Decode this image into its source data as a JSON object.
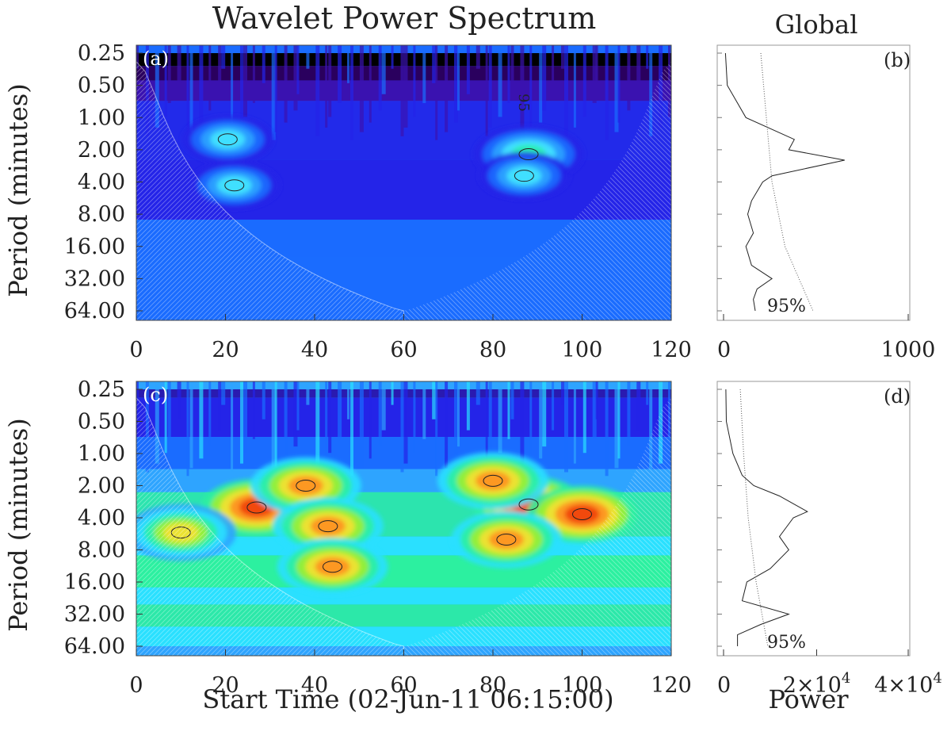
{
  "figure": {
    "title": "Wavelet Power Spectrum",
    "global_title": "Global",
    "xlabel": "Start Time (02-Jun-11 06:15:00)",
    "ylabel": "Period (minutes)",
    "global_xlabel": "Power",
    "sig_label": "95%"
  },
  "chart_data": [
    {
      "id": "a",
      "type": "heatmap",
      "panel_label": "(a)",
      "xlabel": "Start Time (02-Jun-11 06:15:00)",
      "ylabel": "Period (minutes)",
      "xlim": [
        0,
        120
      ],
      "ylim": [
        0.25,
        64
      ],
      "y_scale": "log2",
      "x_ticks": [
        "0",
        "20",
        "40",
        "60",
        "80",
        "100",
        "120"
      ],
      "y_ticks": [
        "0.25",
        "0.50",
        "1.00",
        "2.00",
        "4.00",
        "8.00",
        "16.00",
        "32.00",
        "64.00"
      ],
      "contour_95_label": "95",
      "colors": [
        "#000000",
        "#2a005e",
        "#3a12b0",
        "#2424e8",
        "#1a6cff",
        "#2ea4ff",
        "#44e6ff",
        "#28f0a8"
      ],
      "power_blobs": [
        {
          "t": 20.5,
          "p": 1.6,
          "level": 6
        },
        {
          "t": 22,
          "p": 4.3,
          "level": 6
        },
        {
          "t": 88,
          "p": 2.2,
          "level": 7
        },
        {
          "t": 87,
          "p": 3.5,
          "level": 6
        }
      ]
    },
    {
      "id": "b",
      "type": "line",
      "panel_label": "(b)",
      "title": "Global",
      "xlim": [
        0,
        1000
      ],
      "x_ticks": [
        "0",
        "1000"
      ],
      "ylim": [
        0.25,
        64
      ],
      "y_scale": "log2",
      "series": [
        {
          "p": [
            0.25,
            0.5,
            1.0,
            1.6,
            2.0,
            2.5,
            3.5,
            4.0,
            6.0,
            8.0,
            12,
            16,
            24,
            32,
            40,
            50,
            64
          ],
          "power": [
            10,
            20,
            120,
            380,
            350,
            650,
            260,
            210,
            150,
            130,
            160,
            120,
            150,
            260,
            180,
            160,
            170
          ]
        },
        {
          "p": [
            0.25,
            1.0,
            4.0,
            16,
            64
          ],
          "power": [
            200,
            230,
            260,
            330,
            480
          ]
        }
      ],
      "sig_label": "95%"
    },
    {
      "id": "c",
      "type": "heatmap",
      "panel_label": "(c)",
      "xlabel": "Start Time (02-Jun-11 06:15:00)",
      "ylabel": "Period (minutes)",
      "xlim": [
        0,
        120
      ],
      "ylim": [
        0.25,
        64
      ],
      "y_scale": "log2",
      "x_ticks": [
        "0",
        "20",
        "40",
        "60",
        "80",
        "100",
        "120"
      ],
      "y_ticks": [
        "0.25",
        "0.50",
        "1.00",
        "2.00",
        "4.00",
        "8.00",
        "16.00",
        "32.00",
        "64.00"
      ],
      "colors": [
        "#2a1ab0",
        "#2424e8",
        "#1a6cff",
        "#2ea4ff",
        "#2ae0ff",
        "#2cf0a0",
        "#9cf030",
        "#f5e030",
        "#ff9020",
        "#f04010"
      ],
      "power_blobs": [
        {
          "t": 27,
          "p": 3.2,
          "level": 9
        },
        {
          "t": 38,
          "p": 2.0,
          "level": 8
        },
        {
          "t": 43,
          "p": 4.8,
          "level": 8
        },
        {
          "t": 44,
          "p": 11.5,
          "level": 8
        },
        {
          "t": 88,
          "p": 3.0,
          "level": 9
        },
        {
          "t": 100,
          "p": 3.7,
          "level": 9
        },
        {
          "t": 80,
          "p": 1.8,
          "level": 8
        },
        {
          "t": 83,
          "p": 6.4,
          "level": 8
        },
        {
          "t": 10,
          "p": 5.5,
          "level": 7
        }
      ]
    },
    {
      "id": "d",
      "type": "line",
      "panel_label": "(d)",
      "xlim": [
        0,
        40000
      ],
      "x_ticks": [
        "0",
        "2×10",
        "4×10"
      ],
      "x_tick_exp": "4",
      "xlabel": "Power",
      "ylim": [
        0.25,
        64
      ],
      "y_scale": "log2",
      "series": [
        {
          "p": [
            0.25,
            0.5,
            1.0,
            1.6,
            2.0,
            2.5,
            3.5,
            4.0,
            6.0,
            8.0,
            12,
            16,
            24,
            32,
            40,
            50,
            64
          ],
          "power": [
            500,
            600,
            2000,
            4000,
            6500,
            12000,
            18000,
            15000,
            12000,
            14000,
            10000,
            5000,
            4000,
            14000,
            8000,
            3000,
            3000
          ]
        },
        {
          "p": [
            0.25,
            1.0,
            4.0,
            16,
            64
          ],
          "power": [
            3600,
            4300,
            5300,
            7000,
            9500
          ]
        }
      ],
      "sig_label": "95%"
    }
  ]
}
